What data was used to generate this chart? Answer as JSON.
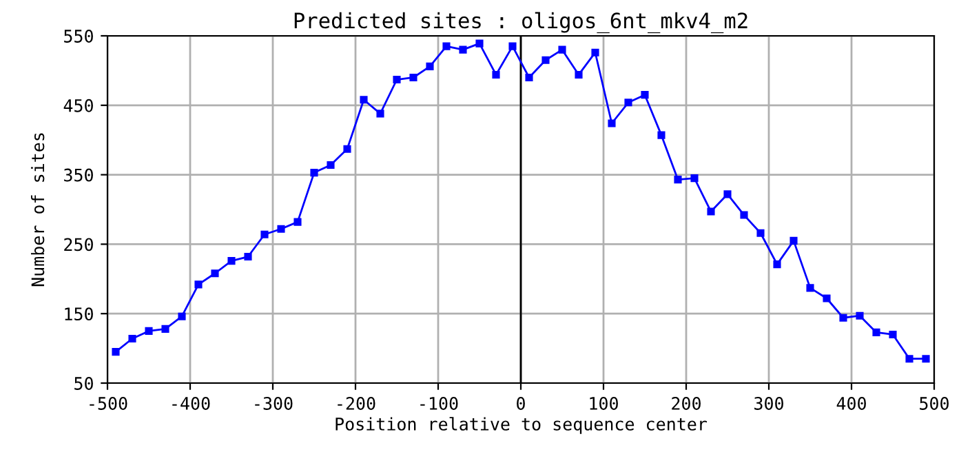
{
  "chart_data": {
    "type": "line",
    "title": "Predicted sites : oligos_6nt_mkv4_m2",
    "xlabel": "Position relative to sequence center",
    "ylabel": "Number of sites",
    "x": [
      -490,
      -470,
      -450,
      -430,
      -410,
      -390,
      -370,
      -350,
      -330,
      -310,
      -290,
      -270,
      -250,
      -230,
      -210,
      -190,
      -170,
      -150,
      -130,
      -110,
      -90,
      -70,
      -50,
      -30,
      -10,
      10,
      30,
      50,
      70,
      90,
      110,
      130,
      150,
      170,
      190,
      210,
      230,
      250,
      270,
      290,
      310,
      330,
      350,
      370,
      390,
      410,
      430,
      450,
      470,
      490
    ],
    "series": [
      {
        "color": "#0000ff",
        "values": [
          95,
          114,
          125,
          128,
          146,
          192,
          208,
          226,
          232,
          264,
          272,
          282,
          353,
          364,
          387,
          458,
          438,
          487,
          490,
          506,
          535,
          530,
          539,
          494,
          535,
          490,
          515,
          530,
          494,
          526,
          424,
          454,
          465,
          407,
          343,
          345,
          297,
          322,
          292,
          266,
          221,
          255,
          187,
          172,
          144,
          147,
          123,
          120,
          85,
          85
        ]
      }
    ],
    "xlim": [
      -500,
      500
    ],
    "ylim": [
      50,
      550
    ],
    "xticks": [
      -500,
      -400,
      -300,
      -200,
      -100,
      0,
      100,
      200,
      300,
      400,
      500
    ],
    "yticks": [
      50,
      150,
      250,
      350,
      450,
      550
    ],
    "ref_lines": [
      {
        "axis": "x",
        "value": 0,
        "color": "#000000"
      }
    ],
    "grid": true,
    "marker": "square",
    "line_style": "solid",
    "legend": false
  }
}
